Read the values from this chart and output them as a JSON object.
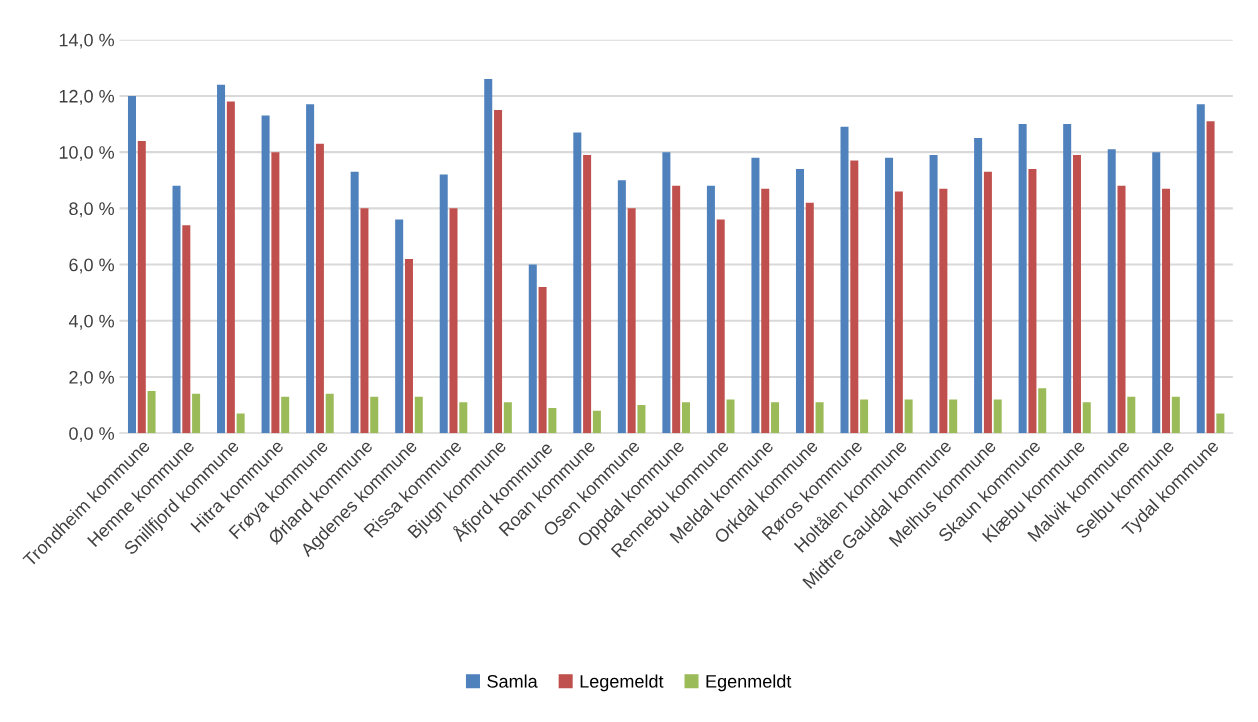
{
  "chart_data": {
    "type": "bar",
    "categories": [
      "Trondheim kommune",
      "Hemne kommune",
      "Snillfjord kommune",
      "Hitra kommune",
      "Frøya kommune",
      "Ørland kommune",
      "Agdenes kommune",
      "Rissa kommune",
      "Bjugn kommune",
      "Åfjord kommune",
      "Roan kommune",
      "Osen kommune",
      "Oppdal kommune",
      "Rennebu kommune",
      "Meldal kommune",
      "Orkdal kommune",
      "Røros kommune",
      "Holtålen kommune",
      "Midtre Gauldal kommune",
      "Melhus kommune",
      "Skaun kommune",
      "Klæbu kommune",
      "Malvik kommune",
      "Selbu kommune",
      "Tydal kommune"
    ],
    "series": [
      {
        "name": "Samla",
        "color": "#4f81bd",
        "values": [
          12.0,
          8.8,
          12.4,
          11.3,
          11.7,
          9.3,
          7.6,
          9.2,
          12.6,
          6.0,
          10.7,
          9.0,
          10.0,
          8.8,
          9.8,
          9.4,
          10.9,
          9.8,
          9.9,
          10.5,
          11.0,
          11.0,
          10.1,
          10.0,
          11.7
        ]
      },
      {
        "name": "Legemeldt",
        "color": "#c0504d",
        "values": [
          10.4,
          7.4,
          11.8,
          10.0,
          10.3,
          8.0,
          6.2,
          8.0,
          11.5,
          5.2,
          9.9,
          8.0,
          8.8,
          7.6,
          8.7,
          8.2,
          9.7,
          8.6,
          8.7,
          9.3,
          9.4,
          9.9,
          8.8,
          8.7,
          11.1
        ]
      },
      {
        "name": "Egenmeldt",
        "color": "#9bbb59",
        "values": [
          1.5,
          1.4,
          0.7,
          1.3,
          1.4,
          1.3,
          1.3,
          1.1,
          1.1,
          0.9,
          0.8,
          1.0,
          1.1,
          1.2,
          1.1,
          1.1,
          1.2,
          1.2,
          1.2,
          1.2,
          1.6,
          1.1,
          1.3,
          1.3,
          0.7
        ]
      }
    ],
    "ylim": [
      0,
      14
    ],
    "yticks": [
      {
        "value": 0,
        "label": "0,0 %"
      },
      {
        "value": 2,
        "label": "2,0 %"
      },
      {
        "value": 4,
        "label": "4,0 %"
      },
      {
        "value": 6,
        "label": "6,0 %"
      },
      {
        "value": 8,
        "label": "8,0 %"
      },
      {
        "value": 10,
        "label": "10,0 %"
      },
      {
        "value": 12,
        "label": "12,0 %"
      },
      {
        "value": 14,
        "label": "14,0 %"
      }
    ],
    "grid": "y",
    "legend": "bottom"
  }
}
